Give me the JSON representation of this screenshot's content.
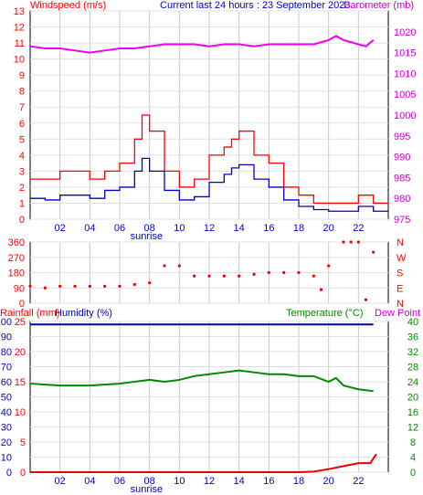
{
  "header": {
    "wind_title": "Windspeed (m/s)",
    "current": "Current last 24 hours : 23 September 2023",
    "baro_title": "Barometer (mb)"
  },
  "colors": {
    "wind_speed": "#ff0000",
    "wind_avg": "#0000cc",
    "pressure": "#ee00ee",
    "direction": "#ee0000",
    "humidity": "#0000aa",
    "temperature": "#008800",
    "rain": "#ee0000",
    "dewpoint": "#cc00cc"
  },
  "chart_data": [
    {
      "type": "line",
      "name": "wind-barometer",
      "x_ticks": [
        "02",
        "04",
        "06",
        "08",
        "10",
        "12",
        "14",
        "16",
        "18",
        "20",
        "22"
      ],
      "x_marker": "sunrise",
      "y_left_ticks": [
        "0",
        "1",
        "2",
        "3",
        "4",
        "5",
        "6",
        "7",
        "8",
        "9",
        "10",
        "11",
        "12",
        "13"
      ],
      "y_right_ticks": [
        "975",
        "980",
        "985",
        "990",
        "995",
        "1000",
        "1005",
        "1010",
        "1015",
        "1020"
      ],
      "ylim_left": [
        0,
        13
      ],
      "ylim_right": [
        975,
        1025
      ],
      "series": [
        {
          "key": "gust",
          "axis": "left",
          "x": [
            0,
            1,
            2,
            3,
            4,
            5,
            6,
            7,
            7.5,
            8,
            9,
            10,
            11,
            12,
            13,
            13.5,
            14,
            15,
            16,
            17,
            18,
            19,
            20,
            21,
            22,
            23
          ],
          "values": [
            2.5,
            2.5,
            3,
            3,
            2.5,
            3,
            3.5,
            5,
            6.5,
            5.5,
            3,
            2,
            2.5,
            4,
            4.5,
            5,
            5.5,
            4,
            3.5,
            2,
            1.5,
            1,
            1,
            1,
            1.5,
            1
          ]
        },
        {
          "key": "avg",
          "axis": "left",
          "x": [
            0,
            1,
            2,
            3,
            4,
            5,
            6,
            7,
            7.5,
            8,
            9,
            10,
            11,
            12,
            13,
            13.5,
            14,
            15,
            16,
            17,
            18,
            19,
            20,
            21,
            22,
            23
          ],
          "values": [
            1.3,
            1.2,
            1.5,
            1.5,
            1.3,
            1.8,
            2,
            3,
            3.8,
            3,
            1.8,
            1.2,
            1.4,
            2.3,
            2.8,
            3.2,
            3.4,
            2.5,
            2,
            1.2,
            0.8,
            0.6,
            0.5,
            0.5,
            0.8,
            0.5
          ]
        },
        {
          "key": "pressure",
          "axis": "right",
          "x": [
            0,
            1,
            2,
            3,
            4,
            5,
            6,
            7,
            8,
            9,
            10,
            11,
            12,
            13,
            14,
            15,
            16,
            17,
            18,
            19,
            20,
            20.5,
            21,
            22,
            22.5,
            23
          ],
          "values": [
            1016.5,
            1016,
            1016,
            1015.5,
            1015,
            1015.5,
            1016,
            1016,
            1016.5,
            1017,
            1017,
            1017,
            1016.5,
            1017,
            1017,
            1016.5,
            1017,
            1017,
            1017,
            1017,
            1018,
            1019,
            1018,
            1017,
            1016.5,
            1018
          ]
        }
      ]
    },
    {
      "type": "scatter",
      "name": "wind-direction",
      "y_left_ticks": [
        "360",
        "270",
        "180",
        "90",
        "0"
      ],
      "y_right_ticks": [
        "N",
        "W",
        "S",
        "E",
        "N"
      ],
      "ylim": [
        0,
        360
      ],
      "x": [
        0,
        1,
        2,
        3,
        4,
        5,
        6,
        7,
        8,
        9,
        10,
        11,
        12,
        13,
        14,
        15,
        16,
        17,
        18,
        19,
        19.5,
        20,
        21,
        21.5,
        22,
        22.5,
        23
      ],
      "values": [
        100,
        90,
        100,
        100,
        100,
        100,
        100,
        110,
        120,
        220,
        220,
        160,
        160,
        160,
        160,
        170,
        180,
        180,
        180,
        160,
        80,
        220,
        360,
        360,
        360,
        20,
        300
      ]
    },
    {
      "type": "line",
      "name": "rain-humidity-temperature",
      "labels": [
        "Rainfall (mm)",
        "Humidity (%)",
        "Temperature (°C)",
        "Dew Point"
      ],
      "y_rain_ticks": [
        "0",
        "5",
        "10",
        "15",
        "20",
        "25"
      ],
      "y_hum_ticks": [
        "0",
        "10",
        "20",
        "30",
        "40",
        "50",
        "60",
        "70",
        "80",
        "90",
        "100"
      ],
      "y_temp_ticks": [
        "0",
        "4",
        "8",
        "12",
        "16",
        "20",
        "24",
        "28",
        "32",
        "36",
        "40"
      ],
      "ylim_temp": [
        0,
        40
      ],
      "series": [
        {
          "key": "humidity",
          "axis": "humidity",
          "x": [
            0,
            23
          ],
          "values": [
            98,
            98
          ]
        },
        {
          "key": "temperature",
          "axis": "temp",
          "x": [
            0,
            2,
            4,
            6,
            8,
            9,
            10,
            11,
            12,
            13,
            14,
            15,
            16,
            17,
            18,
            19,
            20,
            20.5,
            21,
            22,
            23
          ],
          "values": [
            23.5,
            23,
            23,
            23.5,
            24.5,
            24,
            24.5,
            25.5,
            26,
            26.5,
            27,
            26.5,
            26,
            26,
            25.5,
            25.5,
            24,
            25,
            23,
            22,
            21.5
          ]
        },
        {
          "key": "rain",
          "axis": "rain",
          "x": [
            0,
            18,
            19,
            20,
            21,
            22,
            22.8,
            23.2
          ],
          "values": [
            0,
            0,
            0.1,
            0.5,
            1,
            1.5,
            1.5,
            3
          ]
        }
      ]
    }
  ]
}
